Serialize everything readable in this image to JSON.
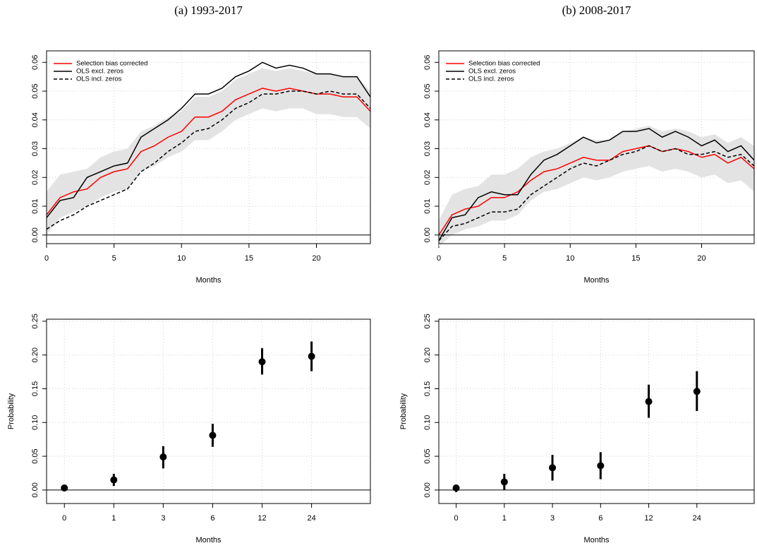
{
  "chart_data": [
    {
      "type": "line",
      "title": "(a) 1993-2017",
      "x_label": "Months",
      "x": [
        0,
        1,
        2,
        3,
        4,
        5,
        6,
        7,
        8,
        9,
        10,
        11,
        12,
        13,
        14,
        15,
        16,
        17,
        18,
        19,
        20,
        21,
        22,
        23,
        24
      ],
      "xlim": [
        0,
        24
      ],
      "xticks": [
        0,
        5,
        10,
        15,
        20
      ],
      "ylim": [
        -0.003,
        0.064
      ],
      "yticks": [
        {
          "value": 0,
          "label": "0.00"
        },
        {
          "value": 0.01,
          "label": "0.01"
        },
        {
          "value": 0.02,
          "label": "0.02"
        },
        {
          "value": 0.03,
          "label": "0.03"
        },
        {
          "value": 0.04,
          "label": "0.04"
        },
        {
          "value": 0.05,
          "label": "0.05"
        },
        {
          "value": 0.06,
          "label": "0.06"
        }
      ],
      "grid": true,
      "hline": 0,
      "legend": "top-left",
      "band": {
        "color": "#e3e3e3",
        "lower": [
          0.0,
          0.006,
          0.008,
          0.01,
          0.013,
          0.015,
          0.016,
          0.022,
          0.024,
          0.027,
          0.029,
          0.033,
          0.033,
          0.036,
          0.04,
          0.042,
          0.044,
          0.043,
          0.044,
          0.044,
          0.042,
          0.042,
          0.041,
          0.041,
          0.037
        ],
        "upper": [
          0.015,
          0.021,
          0.022,
          0.023,
          0.027,
          0.029,
          0.03,
          0.036,
          0.038,
          0.041,
          0.043,
          0.048,
          0.048,
          0.05,
          0.054,
          0.056,
          0.058,
          0.057,
          0.058,
          0.057,
          0.056,
          0.056,
          0.055,
          0.055,
          0.05
        ]
      },
      "series": [
        {
          "name": "Selection bias corrected",
          "color": "#ff0000",
          "linestyle": "solid",
          "values": [
            0.007,
            0.013,
            0.015,
            0.016,
            0.02,
            0.022,
            0.023,
            0.029,
            0.031,
            0.034,
            0.036,
            0.041,
            0.041,
            0.043,
            0.047,
            0.049,
            0.051,
            0.05,
            0.051,
            0.05,
            0.049,
            0.049,
            0.048,
            0.048,
            0.043
          ]
        },
        {
          "name": "OLS excl. zeros",
          "color": "#000000",
          "linestyle": "solid",
          "values": [
            0.006,
            0.012,
            0.013,
            0.02,
            0.022,
            0.024,
            0.025,
            0.034,
            0.037,
            0.04,
            0.044,
            0.049,
            0.049,
            0.051,
            0.055,
            0.057,
            0.06,
            0.058,
            0.059,
            0.058,
            0.056,
            0.056,
            0.055,
            0.055,
            0.048
          ]
        },
        {
          "name": "OLS incl. zeros",
          "color": "#000000",
          "linestyle": "dashed",
          "values": [
            0.002,
            0.005,
            0.007,
            0.01,
            0.012,
            0.014,
            0.016,
            0.022,
            0.025,
            0.029,
            0.032,
            0.036,
            0.037,
            0.04,
            0.044,
            0.046,
            0.049,
            0.049,
            0.05,
            0.05,
            0.049,
            0.05,
            0.049,
            0.049,
            0.044
          ]
        }
      ]
    },
    {
      "type": "line",
      "title": "(b) 2008-2017",
      "x_label": "Months",
      "x": [
        0,
        1,
        2,
        3,
        4,
        5,
        6,
        7,
        8,
        9,
        10,
        11,
        12,
        13,
        14,
        15,
        16,
        17,
        18,
        19,
        20,
        21,
        22,
        23,
        24
      ],
      "xlim": [
        0,
        24
      ],
      "xticks": [
        0,
        5,
        10,
        15,
        20
      ],
      "ylim": [
        -0.003,
        0.064
      ],
      "yticks": [
        {
          "value": 0,
          "label": "0.00"
        },
        {
          "value": 0.01,
          "label": "0.01"
        },
        {
          "value": 0.02,
          "label": "0.02"
        },
        {
          "value": 0.03,
          "label": "0.03"
        },
        {
          "value": 0.04,
          "label": "0.04"
        },
        {
          "value": 0.05,
          "label": "0.05"
        },
        {
          "value": 0.06,
          "label": "0.06"
        }
      ],
      "grid": true,
      "hline": 0,
      "legend": "top-left",
      "band": {
        "color": "#e3e3e3",
        "lower": [
          -0.004,
          0.0,
          0.002,
          0.003,
          0.005,
          0.005,
          0.007,
          0.012,
          0.015,
          0.016,
          0.018,
          0.02,
          0.019,
          0.02,
          0.022,
          0.023,
          0.024,
          0.022,
          0.023,
          0.022,
          0.02,
          0.021,
          0.018,
          0.019,
          0.015
        ],
        "upper": [
          0.005,
          0.014,
          0.016,
          0.017,
          0.021,
          0.021,
          0.023,
          0.027,
          0.029,
          0.03,
          0.032,
          0.034,
          0.033,
          0.033,
          0.036,
          0.037,
          0.038,
          0.036,
          0.037,
          0.036,
          0.034,
          0.035,
          0.032,
          0.034,
          0.031
        ]
      },
      "series": [
        {
          "name": "Selection bias corrected",
          "color": "#ff0000",
          "linestyle": "solid",
          "values": [
            0.0,
            0.007,
            0.009,
            0.01,
            0.013,
            0.013,
            0.015,
            0.019,
            0.022,
            0.023,
            0.025,
            0.027,
            0.026,
            0.026,
            0.029,
            0.03,
            0.031,
            0.029,
            0.03,
            0.029,
            0.027,
            0.028,
            0.025,
            0.027,
            0.023
          ]
        },
        {
          "name": "OLS excl. zeros",
          "color": "#000000",
          "linestyle": "solid",
          "values": [
            -0.002,
            0.006,
            0.007,
            0.013,
            0.015,
            0.014,
            0.014,
            0.021,
            0.026,
            0.028,
            0.031,
            0.034,
            0.032,
            0.033,
            0.036,
            0.036,
            0.037,
            0.034,
            0.036,
            0.034,
            0.031,
            0.033,
            0.029,
            0.031,
            0.026
          ]
        },
        {
          "name": "OLS incl. zeros",
          "color": "#000000",
          "linestyle": "dashed",
          "values": [
            -0.002,
            0.003,
            0.004,
            0.006,
            0.008,
            0.008,
            0.009,
            0.014,
            0.017,
            0.02,
            0.023,
            0.025,
            0.024,
            0.026,
            0.028,
            0.029,
            0.031,
            0.029,
            0.03,
            0.028,
            0.028,
            0.029,
            0.027,
            0.028,
            0.024
          ]
        }
      ]
    },
    {
      "type": "scatter",
      "x_label": "Months",
      "y_label": "Probability",
      "categories": [
        "0",
        "1",
        "3",
        "6",
        "12",
        "24"
      ],
      "values": [
        0.003,
        0.015,
        0.049,
        0.081,
        0.19,
        0.198
      ],
      "lower": [
        0.0,
        0.006,
        0.032,
        0.064,
        0.171,
        0.176
      ],
      "upper": [
        0.007,
        0.024,
        0.065,
        0.098,
        0.21,
        0.22
      ],
      "color": "#000000",
      "ylim": [
        -0.02,
        0.253
      ],
      "yticks": [
        {
          "value": 0,
          "label": "0.00"
        },
        {
          "value": 0.05,
          "label": "0.05"
        },
        {
          "value": 0.1,
          "label": "0.10"
        },
        {
          "value": 0.15,
          "label": "0.15"
        },
        {
          "value": 0.2,
          "label": "0.20"
        },
        {
          "value": 0.25,
          "label": "0.25"
        }
      ],
      "grid": true,
      "hline": 0
    },
    {
      "type": "scatter",
      "x_label": "Months",
      "y_label": "Probability",
      "categories": [
        "0",
        "1",
        "3",
        "6",
        "12",
        "24"
      ],
      "values": [
        0.003,
        0.012,
        0.033,
        0.036,
        0.131,
        0.146
      ],
      "lower": [
        -0.003,
        0.0,
        0.014,
        0.016,
        0.107,
        0.117
      ],
      "upper": [
        0.008,
        0.024,
        0.052,
        0.056,
        0.156,
        0.176
      ],
      "color": "#000000",
      "ylim": [
        -0.02,
        0.253
      ],
      "yticks": [
        {
          "value": 0,
          "label": "0.00"
        },
        {
          "value": 0.05,
          "label": "0.05"
        },
        {
          "value": 0.1,
          "label": "0.10"
        },
        {
          "value": 0.15,
          "label": "0.15"
        },
        {
          "value": 0.2,
          "label": "0.20"
        },
        {
          "value": 0.25,
          "label": "0.25"
        }
      ],
      "grid": true,
      "hline": 0
    }
  ]
}
